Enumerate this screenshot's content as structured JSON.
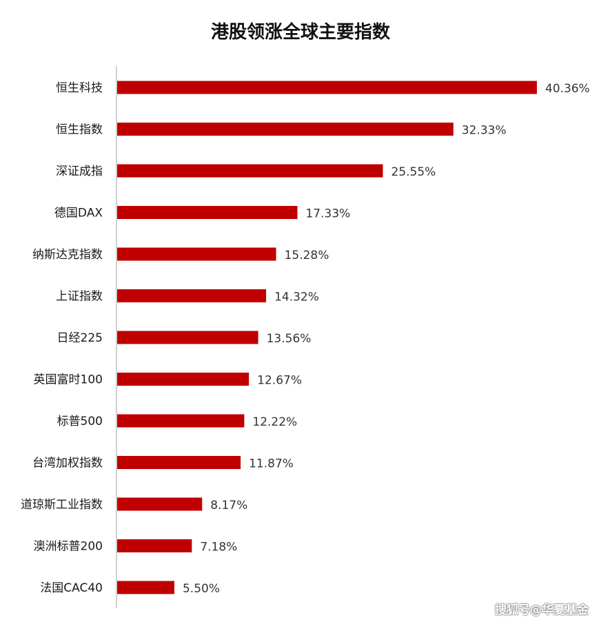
{
  "chart_data": {
    "type": "bar",
    "orientation": "horizontal",
    "title": "港股领涨全球主要指数",
    "categories": [
      "恒生科技",
      "恒生指数",
      "深证成指",
      "德国DAX",
      "纳斯达克指数",
      "上证指数",
      "日经225",
      "英国富时100",
      "标普500",
      "台湾加权指数",
      "道琼斯工业指数",
      "澳洲标普200",
      "法国CAC40"
    ],
    "values": [
      40.36,
      32.33,
      25.55,
      17.33,
      15.28,
      14.32,
      13.56,
      12.67,
      12.22,
      11.87,
      8.17,
      7.18,
      5.5
    ],
    "value_labels": [
      "40.36%",
      "32.33%",
      "25.55%",
      "17.33%",
      "15.28%",
      "14.32%",
      "13.56%",
      "12.67%",
      "12.22%",
      "11.87%",
      "8.17%",
      "7.18%",
      "5.50%"
    ],
    "unit": "%",
    "xlim": [
      0,
      45
    ],
    "grid": false,
    "bar_color": "#C00000"
  },
  "watermark": "搜狐号@华夏基金"
}
